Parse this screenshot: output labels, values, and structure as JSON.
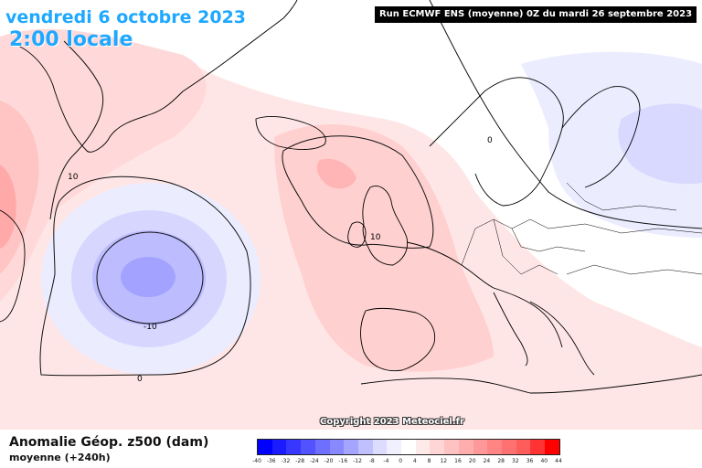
{
  "header": {
    "date": "vendredi 6 octobre 2023",
    "hour": "2:00 locale",
    "run": "Run ECMWF ENS (moyenne) 0Z du mardi 26 septembre 2023"
  },
  "map": {
    "contour_labels": [
      "10",
      "10",
      "0",
      "-10",
      "0"
    ]
  },
  "footer": {
    "variable": "Anomalie Géop. z500 (dam)",
    "subtitle": "moyenne   (+240h)",
    "copyright": "Copyright 2023 Meteociel.fr"
  },
  "colorscale": {
    "labels": [
      "-40",
      "-36",
      "-32",
      "-28",
      "-24",
      "-20",
      "-16",
      "-12",
      "-8",
      "-4",
      "0",
      "4",
      "8",
      "12",
      "16",
      "20",
      "24",
      "28",
      "32",
      "36",
      "40",
      "44"
    ],
    "colors": [
      "#0000ff",
      "#1b1bff",
      "#3737ff",
      "#5252ff",
      "#6e6eff",
      "#8989ff",
      "#a5a5ff",
      "#c0c0ff",
      "#dcdcff",
      "#f0f0ff",
      "#ffffff",
      "#ffeaea",
      "#ffd6d6",
      "#ffc2c2",
      "#ffadad",
      "#ff9999",
      "#ff8585",
      "#ff7070",
      "#ff5c5c",
      "#ff3333",
      "#ff0000"
    ]
  }
}
